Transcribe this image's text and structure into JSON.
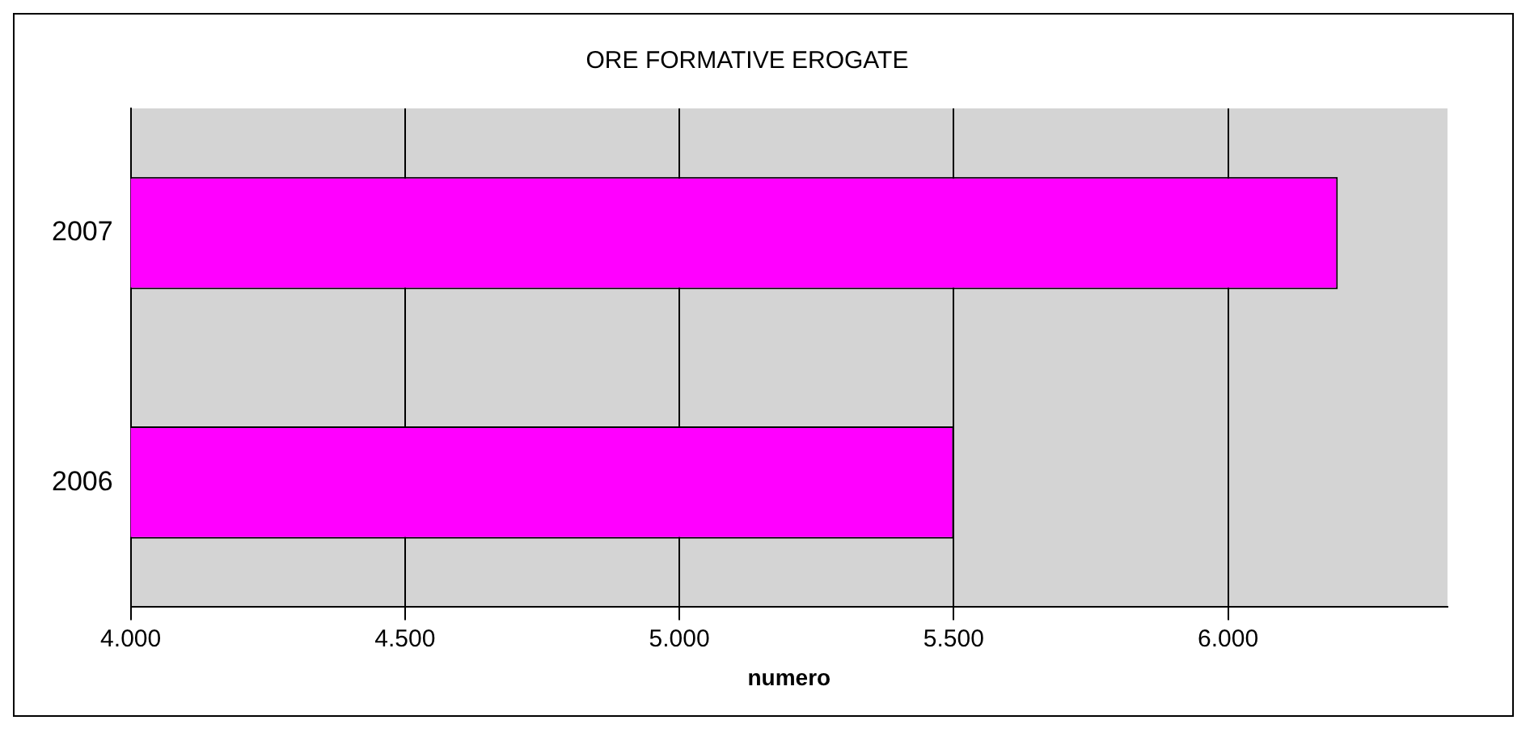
{
  "chart_data": {
    "type": "bar",
    "orientation": "horizontal",
    "title": "ORE FORMATIVE EROGATE",
    "xlabel": "numero",
    "categories": [
      "2007",
      "2006"
    ],
    "values": [
      6200,
      5500
    ],
    "color": "#ff00ff",
    "xlim": [
      4000,
      6400
    ],
    "xticks": [
      {
        "value": 4000,
        "label": "4.000"
      },
      {
        "value": 4500,
        "label": "4.500"
      },
      {
        "value": 5000,
        "label": "5.000"
      },
      {
        "value": 5500,
        "label": "5.500"
      },
      {
        "value": 6000,
        "label": "6.000"
      }
    ],
    "grid": "x"
  }
}
